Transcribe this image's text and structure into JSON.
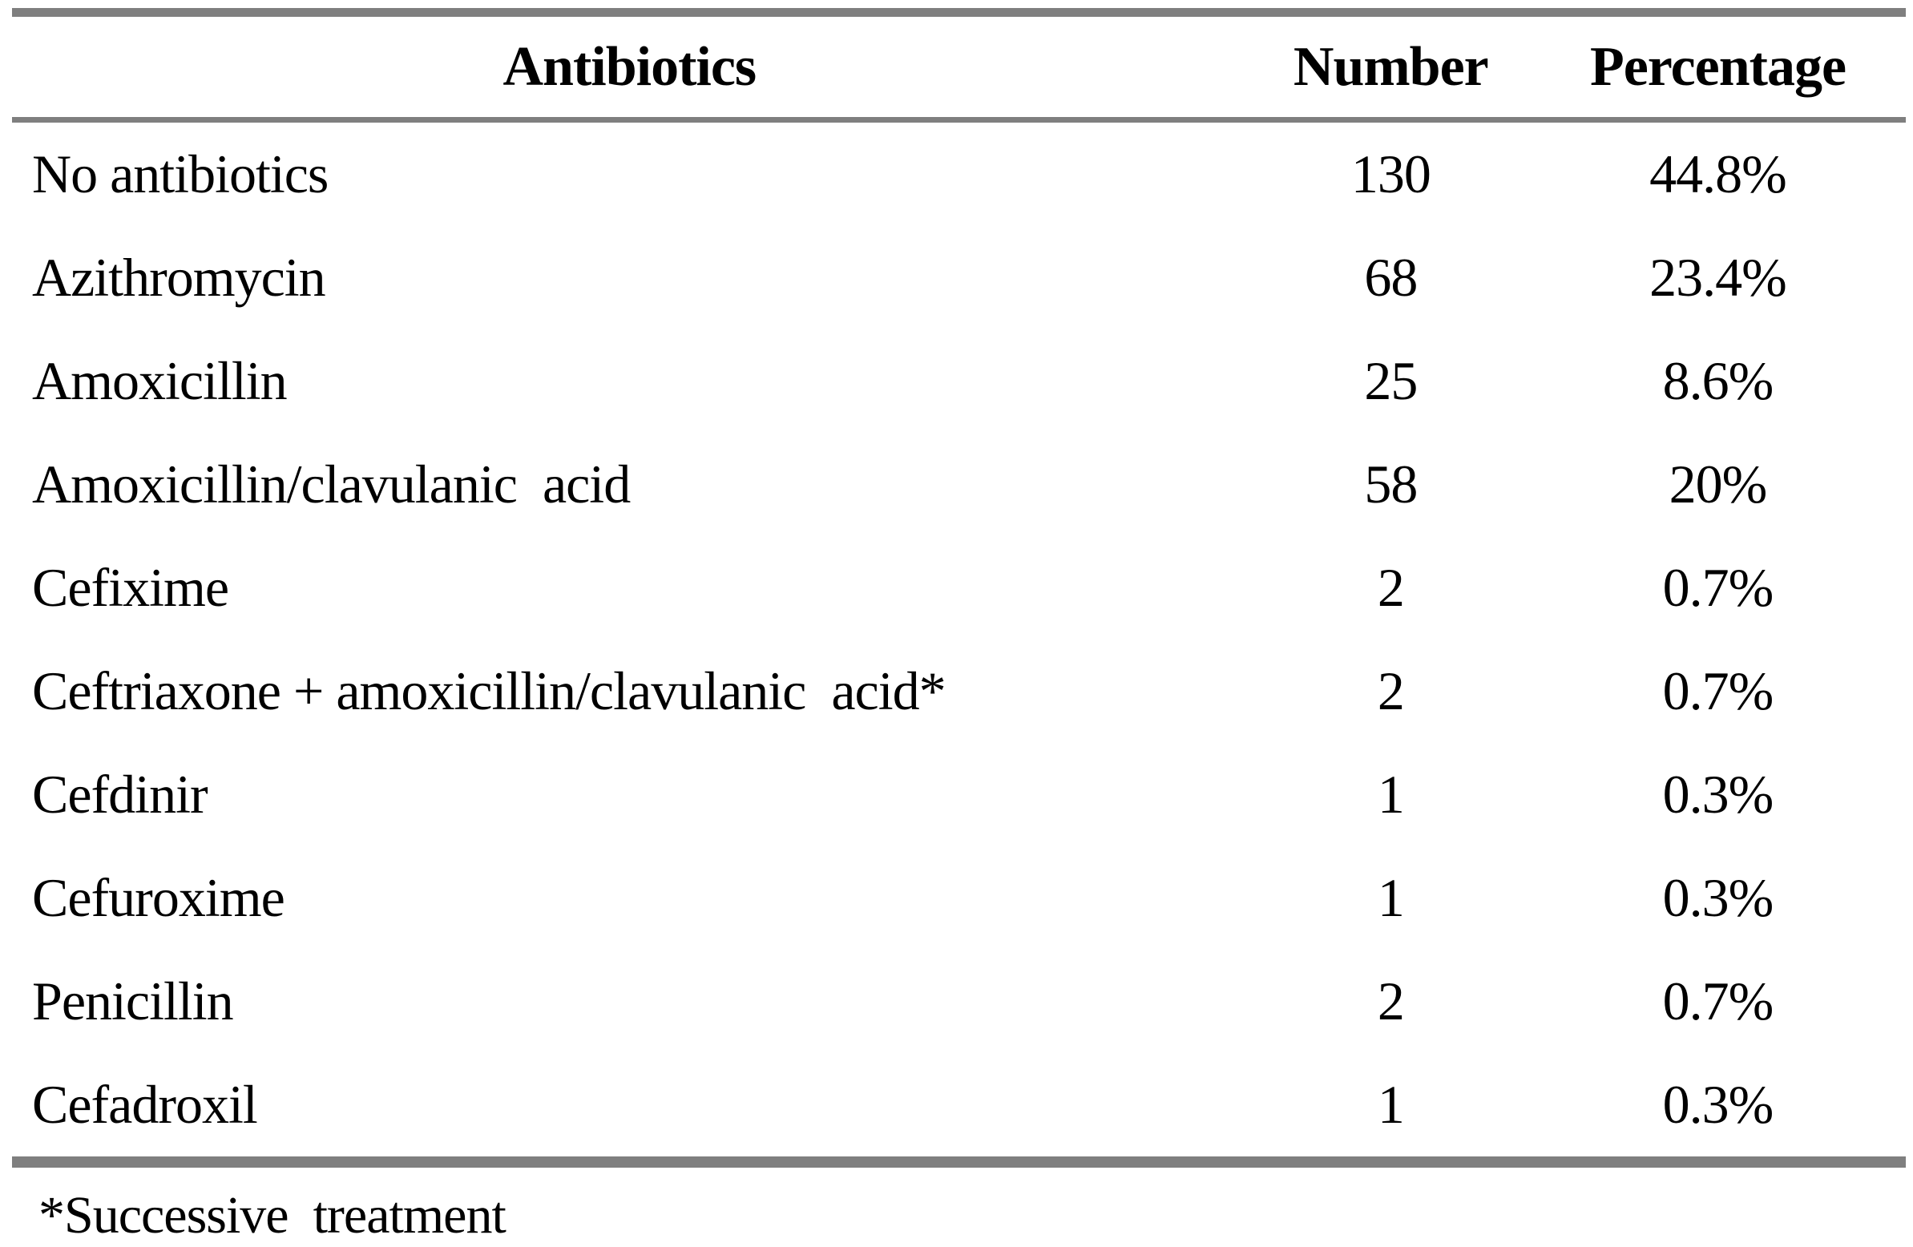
{
  "table": {
    "headers": [
      "Antibiotics",
      "Number",
      "Percentage"
    ],
    "rows": [
      {
        "antibiotic": "No antibiotics",
        "number": "130",
        "percentage": "44.8%"
      },
      {
        "antibiotic": "Azithromycin",
        "number": "68",
        "percentage": "23.4%"
      },
      {
        "antibiotic": "Amoxicillin",
        "number": "25",
        "percentage": "8.6%"
      },
      {
        "antibiotic": "Amoxicillin/clavulanic  acid",
        "number": "58",
        "percentage": "20%"
      },
      {
        "antibiotic": "Cefixime",
        "number": "2",
        "percentage": "0.7%"
      },
      {
        "antibiotic": "Ceftriaxone + amoxicillin/clavulanic  acid*",
        "number": "2",
        "percentage": "0.7%"
      },
      {
        "antibiotic": "Cefdinir",
        "number": "1",
        "percentage": "0.3%"
      },
      {
        "antibiotic": "Cefuroxime",
        "number": "1",
        "percentage": "0.3%"
      },
      {
        "antibiotic": "Penicillin",
        "number": "2",
        "percentage": "0.7%"
      },
      {
        "antibiotic": "Cefadroxil",
        "number": "1",
        "percentage": "0.3%"
      }
    ],
    "footnote": "*Successive  treatment"
  },
  "colors": {
    "rule": "#7f7f7f",
    "text": "#000000",
    "background": "#ffffff"
  }
}
